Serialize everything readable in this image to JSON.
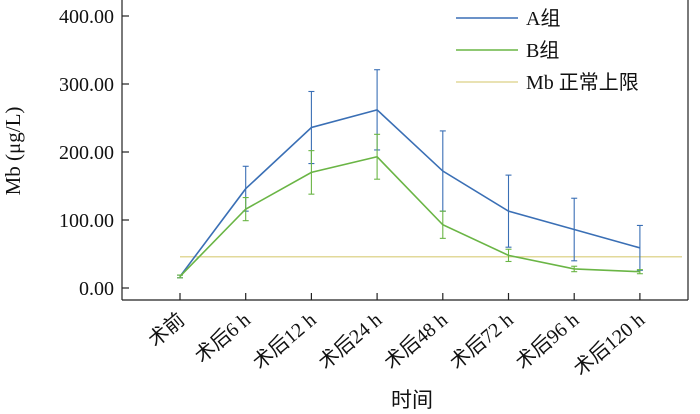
{
  "chart_data": {
    "type": "line",
    "xlabel": "时间",
    "ylabel": "Mb (μg/L)",
    "categories": [
      "术前",
      "术后6 h",
      "术后12 h",
      "术后24 h",
      "术后48 h",
      "术后72 h",
      "术后96 h",
      "术后120 h"
    ],
    "ylim": [
      -18,
      420
    ],
    "yticks": [
      0,
      100,
      200,
      300,
      400
    ],
    "ytick_labels": [
      "0.00",
      "100.00",
      "200.00",
      "300.00",
      "400.00"
    ],
    "legend_position": "top-right",
    "grid": false,
    "series": [
      {
        "name": "A组",
        "color": "#3a6fb5",
        "values": [
          17,
          146,
          236,
          262,
          172,
          113,
          86,
          59
        ],
        "error": [
          2,
          33,
          53,
          59,
          59,
          53,
          46,
          33
        ]
      },
      {
        "name": "B组",
        "color": "#6ab545",
        "values": [
          17,
          116,
          170,
          193,
          93,
          48,
          28,
          24
        ],
        "error": [
          2,
          17,
          32,
          33,
          20,
          9,
          4,
          3
        ]
      }
    ],
    "reference_line": {
      "name": "Mb 正常上限",
      "value": 46,
      "color": "#e2d99a"
    }
  }
}
